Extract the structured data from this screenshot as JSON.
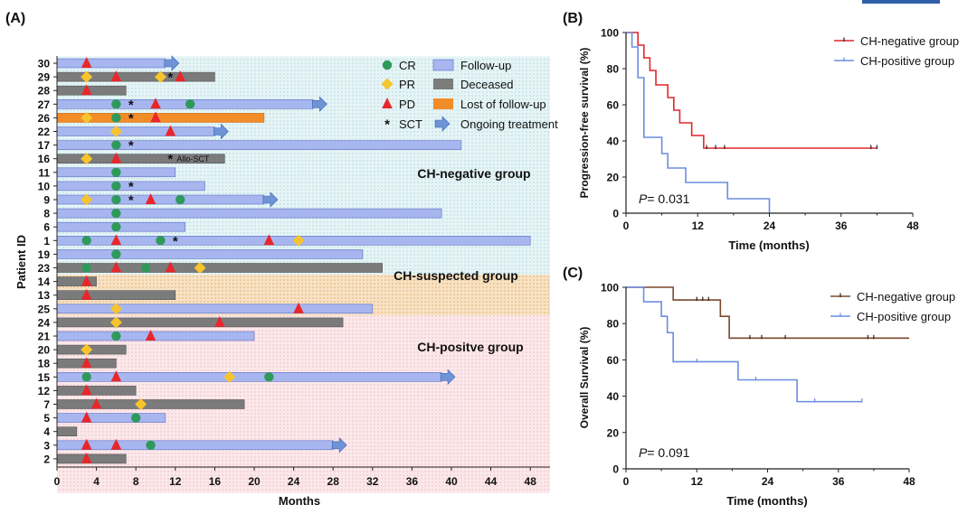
{
  "figure": {
    "corner_bar_color": "#2e5fa8"
  },
  "chart_data": [
    {
      "panel": "(A)",
      "type": "swimmer",
      "xlabel": "Months",
      "ylabel": "Patient ID",
      "xlim": [
        0,
        50
      ],
      "xticks": [
        0,
        4,
        8,
        12,
        16,
        20,
        24,
        28,
        32,
        36,
        40,
        44,
        48
      ],
      "colors": {
        "follow_up": "#a7b6ef",
        "deceased": "#7b7b7b",
        "lost": "#f28c28",
        "cr": "#2e9a5a",
        "pr": "#f6c42d",
        "pd": "#e8262b",
        "arrow": "#6f94d6",
        "bg_negative": "#e6f4f6",
        "bg_suspected": "#f7e2c5",
        "bg_positive": "#fbe8ea",
        "dots_negative": "#a9d6de",
        "dots_suspected": "#e4ad63",
        "dots_positive": "#f0b6bd"
      },
      "legend": [
        {
          "key": "cr",
          "label": "CR"
        },
        {
          "key": "pr",
          "label": "PR"
        },
        {
          "key": "pd",
          "label": "PD"
        },
        {
          "key": "sct",
          "label": "SCT"
        },
        {
          "key": "follow_up",
          "label": "Follow-up"
        },
        {
          "key": "deceased",
          "label": "Deceased"
        },
        {
          "key": "lost",
          "label": "Lost of follow-up"
        },
        {
          "key": "ongoing",
          "label": "Ongoing treatment"
        }
      ],
      "groups": [
        {
          "label": "CH-negative group",
          "key": "negative",
          "first_row": 0,
          "last_row": 15
        },
        {
          "label": "CH-suspected  group",
          "key": "suspected",
          "first_row": 16,
          "last_row": 18
        },
        {
          "label": "CH-positve group",
          "key": "positive",
          "first_row": 19,
          "last_row": 31
        }
      ],
      "patients": [
        {
          "id": "30",
          "end": 11,
          "status": "follow_up",
          "ongoing": true,
          "cr": [],
          "pr": [],
          "pd": [
            3
          ],
          "sct": []
        },
        {
          "id": "29",
          "end": 16,
          "status": "deceased",
          "ongoing": false,
          "cr": [],
          "pr": [
            3,
            10.5
          ],
          "pd": [
            6,
            12.5
          ],
          "sct": [
            11.5
          ]
        },
        {
          "id": "28",
          "end": 7,
          "status": "deceased",
          "ongoing": false,
          "cr": [],
          "pr": [],
          "pd": [
            3
          ],
          "sct": []
        },
        {
          "id": "27",
          "end": 26,
          "status": "follow_up",
          "ongoing": true,
          "cr": [
            6,
            13.5
          ],
          "pr": [],
          "pd": [
            10
          ],
          "sct": [
            7.5
          ]
        },
        {
          "id": "26",
          "end": 21,
          "status": "lost",
          "ongoing": false,
          "cr": [
            6
          ],
          "pr": [
            3
          ],
          "pd": [
            10
          ],
          "sct": [
            7.5
          ]
        },
        {
          "id": "22",
          "end": 16,
          "status": "follow_up",
          "ongoing": true,
          "cr": [],
          "pr": [
            6
          ],
          "pd": [
            11.5
          ],
          "sct": []
        },
        {
          "id": "17",
          "end": 41,
          "status": "follow_up",
          "ongoing": false,
          "cr": [
            6
          ],
          "pr": [],
          "pd": [],
          "sct": [
            7.5
          ]
        },
        {
          "id": "16",
          "end": 17,
          "status": "deceased",
          "ongoing": false,
          "cr": [],
          "pr": [
            3
          ],
          "pd": [
            6
          ],
          "sct": [
            11.5
          ],
          "note": "Allo-SCT"
        },
        {
          "id": "11",
          "end": 12,
          "status": "follow_up",
          "ongoing": false,
          "cr": [
            6
          ],
          "pr": [],
          "pd": [],
          "sct": []
        },
        {
          "id": "10",
          "end": 15,
          "status": "follow_up",
          "ongoing": false,
          "cr": [
            6
          ],
          "pr": [],
          "pd": [],
          "sct": [
            7.5
          ]
        },
        {
          "id": "9",
          "end": 21,
          "status": "follow_up",
          "ongoing": true,
          "cr": [
            6,
            12.5
          ],
          "pr": [
            3
          ],
          "pd": [
            9.5
          ],
          "sct": [
            7.5
          ]
        },
        {
          "id": "8",
          "end": 39,
          "status": "follow_up",
          "ongoing": false,
          "cr": [
            6
          ],
          "pr": [],
          "pd": [],
          "sct": []
        },
        {
          "id": "6",
          "end": 13,
          "status": "follow_up",
          "ongoing": false,
          "cr": [
            6
          ],
          "pr": [],
          "pd": [],
          "sct": []
        },
        {
          "id": "1",
          "end": 48,
          "status": "follow_up",
          "ongoing": false,
          "cr": [
            3,
            10.5
          ],
          "pr": [
            24.5
          ],
          "pd": [
            6,
            21.5
          ],
          "sct": [
            12
          ]
        },
        {
          "id": "19",
          "end": 31,
          "status": "follow_up",
          "ongoing": false,
          "cr": [
            6
          ],
          "pr": [],
          "pd": [],
          "sct": []
        },
        {
          "id": "23",
          "end": 33,
          "status": "deceased",
          "ongoing": false,
          "cr": [
            3,
            9
          ],
          "pr": [
            14.5
          ],
          "pd": [
            6,
            11.5
          ],
          "sct": []
        },
        {
          "id": "14",
          "end": 4,
          "status": "deceased",
          "ongoing": false,
          "cr": [],
          "pr": [],
          "pd": [
            3
          ],
          "sct": []
        },
        {
          "id": "13",
          "end": 12,
          "status": "deceased",
          "ongoing": false,
          "cr": [],
          "pr": [],
          "pd": [
            3
          ],
          "sct": []
        },
        {
          "id": "25",
          "end": 32,
          "status": "follow_up",
          "ongoing": false,
          "cr": [],
          "pr": [
            6
          ],
          "pd": [
            24.5
          ],
          "sct": []
        },
        {
          "id": "24",
          "end": 29,
          "status": "deceased",
          "ongoing": false,
          "cr": [],
          "pr": [
            6
          ],
          "pd": [
            16.5
          ],
          "sct": []
        },
        {
          "id": "21",
          "end": 20,
          "status": "follow_up",
          "ongoing": false,
          "cr": [
            6
          ],
          "pr": [],
          "pd": [
            9.5
          ],
          "sct": []
        },
        {
          "id": "20",
          "end": 7,
          "status": "deceased",
          "ongoing": false,
          "cr": [],
          "pr": [
            3
          ],
          "pd": [],
          "sct": []
        },
        {
          "id": "18",
          "end": 6,
          "status": "deceased",
          "ongoing": false,
          "cr": [],
          "pr": [],
          "pd": [
            3
          ],
          "sct": []
        },
        {
          "id": "15",
          "end": 39,
          "status": "follow_up",
          "ongoing": true,
          "cr": [
            3,
            21.5
          ],
          "pr": [
            17.5
          ],
          "pd": [
            6
          ],
          "sct": []
        },
        {
          "id": "12",
          "end": 8,
          "status": "deceased",
          "ongoing": false,
          "cr": [],
          "pr": [],
          "pd": [
            3
          ],
          "sct": []
        },
        {
          "id": "7",
          "end": 19,
          "status": "deceased",
          "ongoing": false,
          "cr": [],
          "pr": [
            8.5
          ],
          "pd": [
            4
          ],
          "sct": []
        },
        {
          "id": "5",
          "end": 11,
          "status": "follow_up",
          "ongoing": false,
          "cr": [
            8
          ],
          "pr": [],
          "pd": [
            3
          ],
          "sct": []
        },
        {
          "id": "4",
          "end": 2,
          "status": "deceased",
          "ongoing": false,
          "cr": [],
          "pr": [],
          "pd": [],
          "sct": []
        },
        {
          "id": "3",
          "end": 28,
          "status": "follow_up",
          "ongoing": true,
          "cr": [
            9.5
          ],
          "pr": [],
          "pd": [
            3,
            6
          ],
          "sct": []
        },
        {
          "id": "2",
          "end": 7,
          "status": "deceased",
          "ongoing": false,
          "cr": [],
          "pr": [],
          "pd": [
            3
          ],
          "sct": []
        }
      ]
    },
    {
      "panel": "(B)",
      "type": "line",
      "subtype": "kaplan-meier",
      "xlabel": "Time (months)",
      "ylabel": "Progression-free  survival (%)",
      "xlim": [
        0,
        48
      ],
      "ylim": [
        0,
        100
      ],
      "xticks": [
        0,
        12,
        24,
        36,
        48
      ],
      "yticks": [
        0,
        20,
        40,
        60,
        80,
        100
      ],
      "annotation": "= 0.031",
      "annotation_prefix": "P",
      "legend_position": "top-right",
      "series": [
        {
          "name": "CH-negative group",
          "color": "#e0262b",
          "steps": [
            [
              0,
              100
            ],
            [
              2,
              93
            ],
            [
              3,
              86
            ],
            [
              4,
              79
            ],
            [
              5,
              71
            ],
            [
              7,
              64
            ],
            [
              8,
              57
            ],
            [
              9,
              50
            ],
            [
              11,
              43
            ],
            [
              13,
              36
            ],
            [
              42,
              36
            ]
          ],
          "censored": [
            [
              13.5,
              36
            ],
            [
              15,
              36
            ],
            [
              16.5,
              36
            ],
            [
              41,
              36
            ],
            [
              42,
              36
            ]
          ]
        },
        {
          "name": "CH-positive group",
          "color": "#6b8de0",
          "steps": [
            [
              0,
              100
            ],
            [
              1,
              92
            ],
            [
              2,
              75
            ],
            [
              3,
              42
            ],
            [
              6,
              33
            ],
            [
              7,
              25
            ],
            [
              10,
              17
            ],
            [
              17,
              8
            ],
            [
              24,
              0
            ]
          ],
          "censored": []
        }
      ]
    },
    {
      "panel": "(C)",
      "type": "line",
      "subtype": "kaplan-meier",
      "xlabel": "Time (months)",
      "ylabel": "Overall Survival (%)",
      "xlim": [
        0,
        48
      ],
      "ylim": [
        0,
        100
      ],
      "xticks": [
        0,
        12,
        24,
        36,
        48
      ],
      "yticks": [
        0,
        20,
        40,
        60,
        80,
        100
      ],
      "annotation": "= 0.091",
      "annotation_prefix": "P",
      "legend_position": "top-right",
      "series": [
        {
          "name": "CH-negative group",
          "color": "#7a4a2a",
          "steps": [
            [
              0,
              100
            ],
            [
              8,
              93
            ],
            [
              16,
              84
            ],
            [
              17.5,
              72
            ],
            [
              48,
              72
            ]
          ],
          "censored": [
            [
              12,
              93
            ],
            [
              13,
              93
            ],
            [
              14,
              93
            ],
            [
              21,
              72
            ],
            [
              23,
              72
            ],
            [
              27,
              72
            ],
            [
              41,
              72
            ],
            [
              42,
              72
            ]
          ]
        },
        {
          "name": "CH-positive group",
          "color": "#6b8de0",
          "steps": [
            [
              0,
              100
            ],
            [
              3,
              92
            ],
            [
              6,
              84
            ],
            [
              7,
              75
            ],
            [
              8,
              59
            ],
            [
              19,
              49
            ],
            [
              29,
              37
            ],
            [
              40,
              37
            ]
          ],
          "censored": [
            [
              12,
              59
            ],
            [
              22,
              49
            ],
            [
              32,
              37
            ],
            [
              40,
              37
            ]
          ]
        }
      ]
    }
  ]
}
